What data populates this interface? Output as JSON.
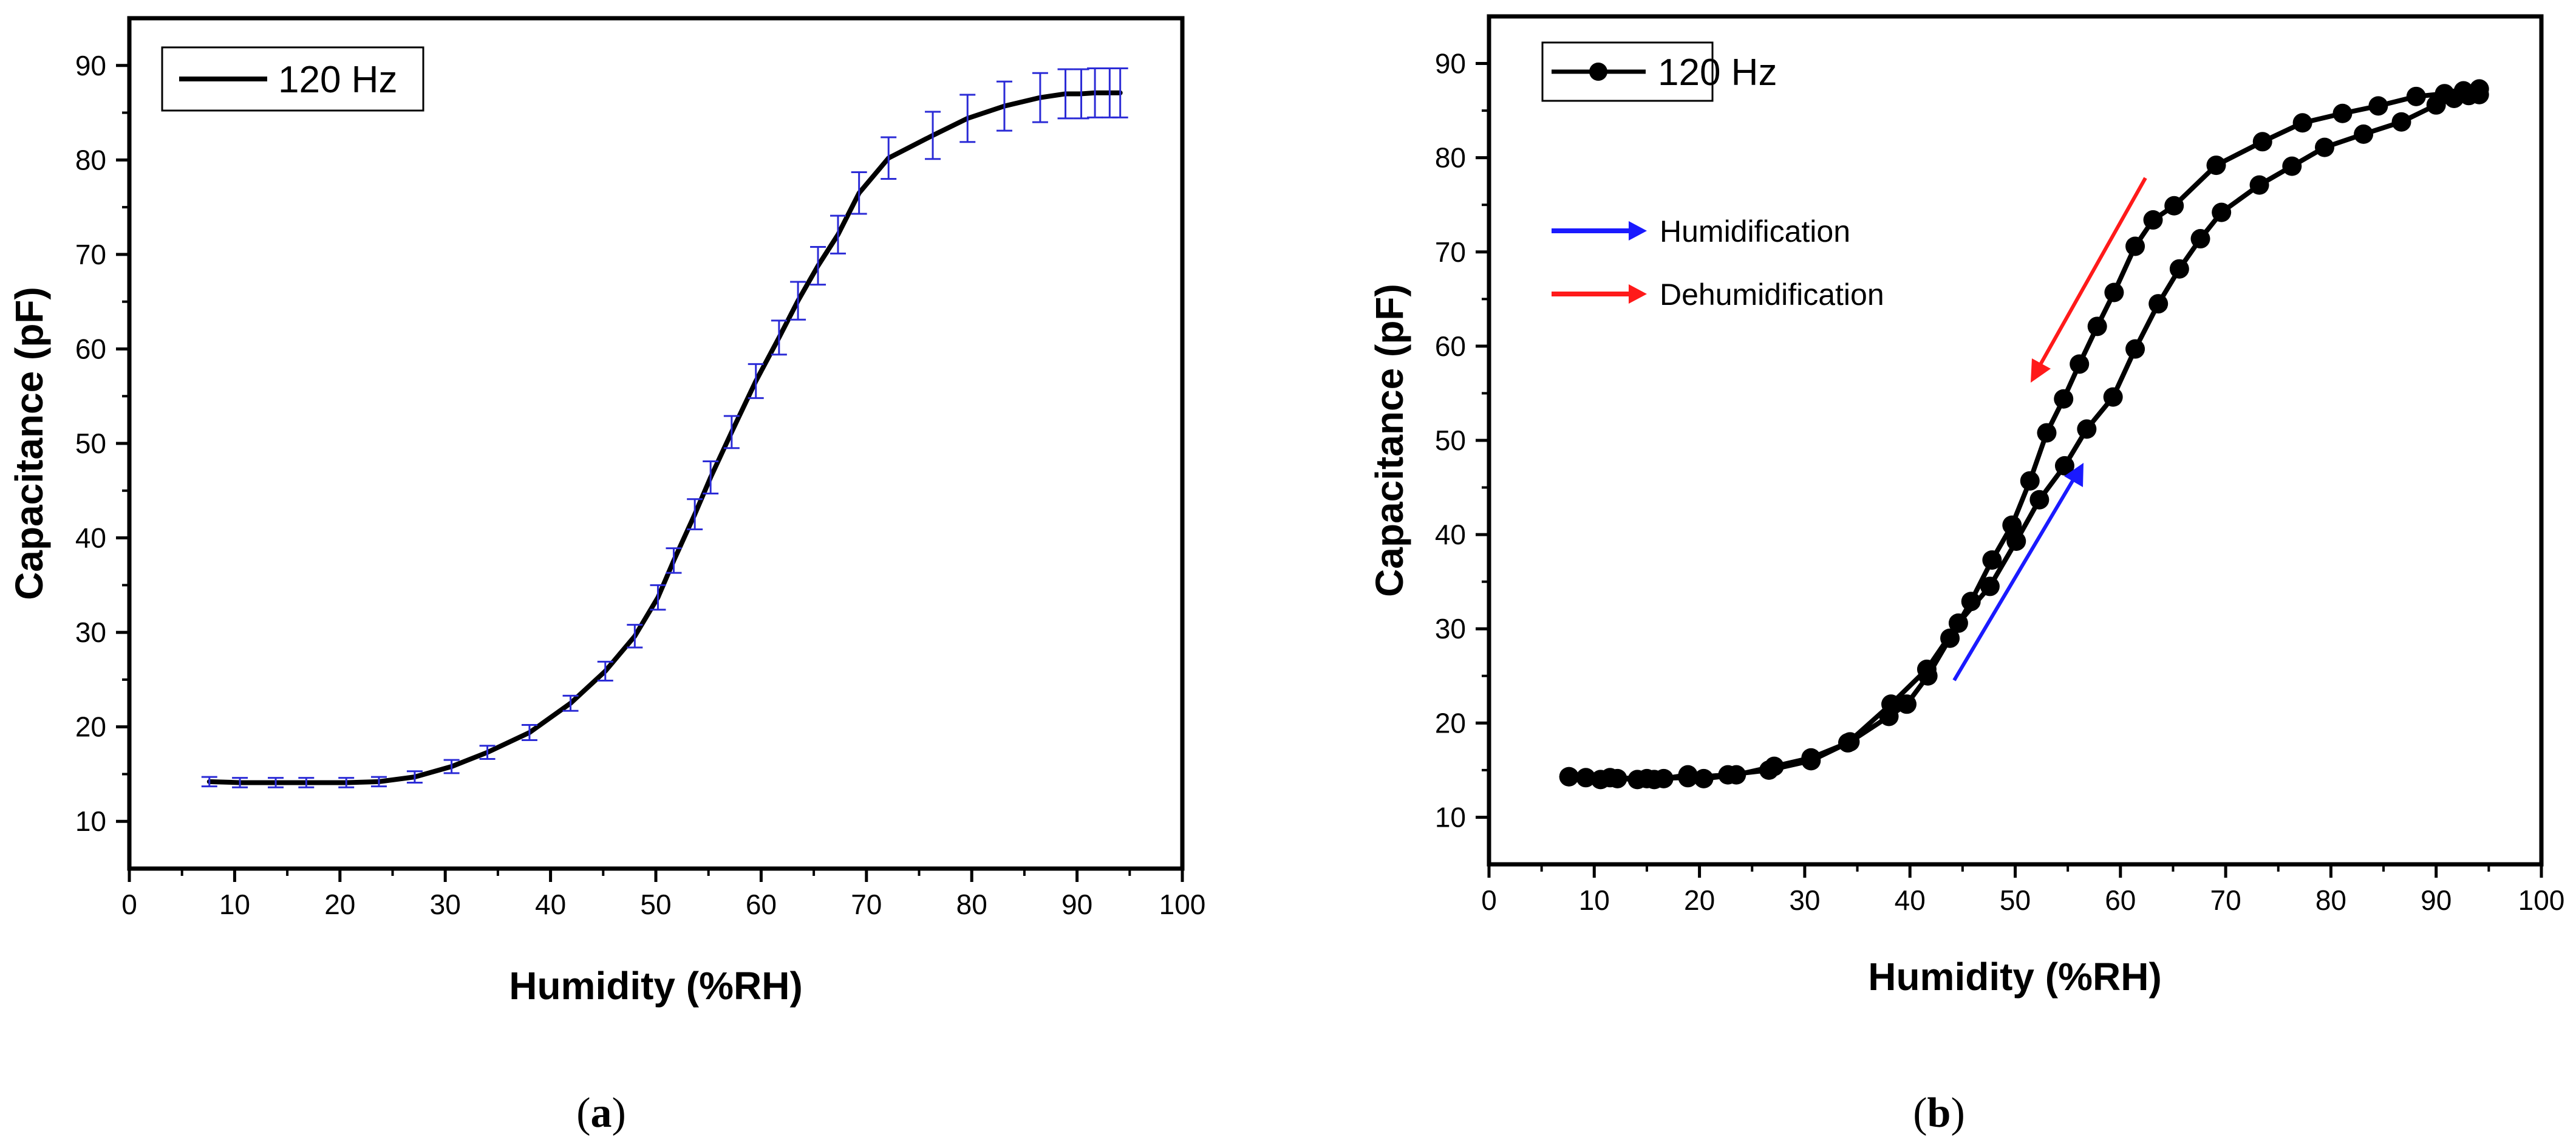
{
  "colors": {
    "axis": "#000000",
    "curve": "#000000",
    "errorbar": "#2b2bd6",
    "humid_arrow": "#1a1aff",
    "dehumid_arrow": "#ff1a1a",
    "marker": "#000000"
  },
  "chart_data": [
    {
      "id": "a",
      "type": "line",
      "panel_label": {
        "open": "(",
        "letter": "a",
        "close": ")"
      },
      "xlabel": "Humidity (%RH)",
      "ylabel": "Capacitance (pF)",
      "xlim": [
        0,
        100
      ],
      "ylim": [
        5,
        95
      ],
      "xticks": [
        0,
        10,
        20,
        30,
        40,
        50,
        60,
        70,
        80,
        90,
        100
      ],
      "yticks": [
        10,
        20,
        30,
        40,
        50,
        60,
        70,
        80,
        90
      ],
      "legend": {
        "label": "120 Hz",
        "position": "top-left",
        "marker": "line"
      },
      "series": [
        {
          "name": "120 Hz",
          "x": [
            7.6,
            10.5,
            13.9,
            16.8,
            20.6,
            23.7,
            27.1,
            30.6,
            34.0,
            38.0,
            41.9,
            45.2,
            48.0,
            50.2,
            51.7,
            53.7,
            55.2,
            57.2,
            59.5,
            61.7,
            63.5,
            65.4,
            67.3,
            69.3,
            72.1,
            76.3,
            79.6,
            83.1,
            86.5,
            88.9,
            90.4,
            91.7,
            93.1,
            94.1
          ],
          "y": [
            14.2,
            14.1,
            14.1,
            14.1,
            14.1,
            14.2,
            14.7,
            15.8,
            17.3,
            19.4,
            22.5,
            25.9,
            29.6,
            33.7,
            37.6,
            42.5,
            46.4,
            51.2,
            56.6,
            61.2,
            65.1,
            68.8,
            72.1,
            76.5,
            80.2,
            82.6,
            84.4,
            85.7,
            86.6,
            87.0,
            87.0,
            87.1,
            87.1,
            87.1
          ],
          "err": [
            0.5,
            0.5,
            0.5,
            0.5,
            0.5,
            0.5,
            0.6,
            0.7,
            0.7,
            0.8,
            0.8,
            1.0,
            1.2,
            1.3,
            1.3,
            1.6,
            1.7,
            1.7,
            1.8,
            1.8,
            2.0,
            2.0,
            2.0,
            2.2,
            2.2,
            2.5,
            2.5,
            2.6,
            2.6,
            2.6,
            2.6,
            2.6,
            2.6,
            2.6
          ]
        }
      ]
    },
    {
      "id": "b",
      "type": "line",
      "panel_label": {
        "open": "(",
        "letter": "b",
        "close": ")"
      },
      "xlabel": "Humidity (%RH)",
      "ylabel": "Capacitance (pF)",
      "xlim": [
        0,
        100
      ],
      "ylim": [
        5,
        95
      ],
      "xticks": [
        0,
        10,
        20,
        30,
        40,
        50,
        60,
        70,
        80,
        90,
        100
      ],
      "yticks": [
        10,
        20,
        30,
        40,
        50,
        60,
        70,
        80,
        90
      ],
      "legend": {
        "label": "120 Hz",
        "position": "top-left",
        "marker": "line-with-circle"
      },
      "annotations": [
        {
          "label": "Humidification",
          "color": "blue"
        },
        {
          "label": "Dehumidification",
          "color": "red"
        }
      ],
      "series": [
        {
          "name": "Humidification",
          "x": [
            7.6,
            9.2,
            10.6,
            12.2,
            14.1,
            15.7,
            16.6,
            18.9,
            20.4,
            23.5,
            27.1,
            30.6,
            34.1,
            38.2,
            41.6,
            44.6,
            47.6,
            50.1,
            52.3,
            54.7,
            56.8,
            59.3,
            61.4,
            63.6,
            65.6,
            67.6,
            69.6,
            73.2,
            76.3,
            79.4,
            83.1,
            86.7,
            90.0,
            91.7,
            93.1,
            94.1
          ],
          "y": [
            14.3,
            14.2,
            14.0,
            14.1,
            14.0,
            14.0,
            14.1,
            14.5,
            14.1,
            14.5,
            15.4,
            16.3,
            17.9,
            22.0,
            25.7,
            30.6,
            34.5,
            39.3,
            43.7,
            47.3,
            51.2,
            54.6,
            59.7,
            64.5,
            68.2,
            71.4,
            74.2,
            77.1,
            79.1,
            81.1,
            82.5,
            83.8,
            85.6,
            86.3,
            86.6,
            86.7
          ]
        },
        {
          "name": "Dehumidification",
          "x": [
            94.1,
            92.6,
            90.8,
            88.1,
            84.5,
            81.1,
            77.3,
            73.5,
            69.1,
            65.1,
            63.1,
            61.4,
            59.4,
            57.8,
            56.1,
            54.6,
            53.0,
            51.4,
            49.7,
            47.8,
            45.8,
            43.8,
            41.7,
            39.7,
            38.0,
            34.3,
            30.6,
            26.6,
            22.7,
            18.9,
            15.0,
            11.5,
            7.6
          ],
          "y": [
            87.3,
            87.1,
            86.8,
            86.5,
            85.5,
            84.7,
            83.7,
            81.7,
            79.2,
            74.9,
            73.4,
            70.6,
            65.7,
            62.1,
            58.1,
            54.4,
            50.8,
            45.7,
            41.0,
            37.3,
            32.9,
            29.0,
            25.0,
            22.0,
            20.7,
            18.0,
            16.0,
            15.0,
            14.5,
            14.2,
            14.1,
            14.2,
            14.3
          ]
        }
      ]
    }
  ]
}
